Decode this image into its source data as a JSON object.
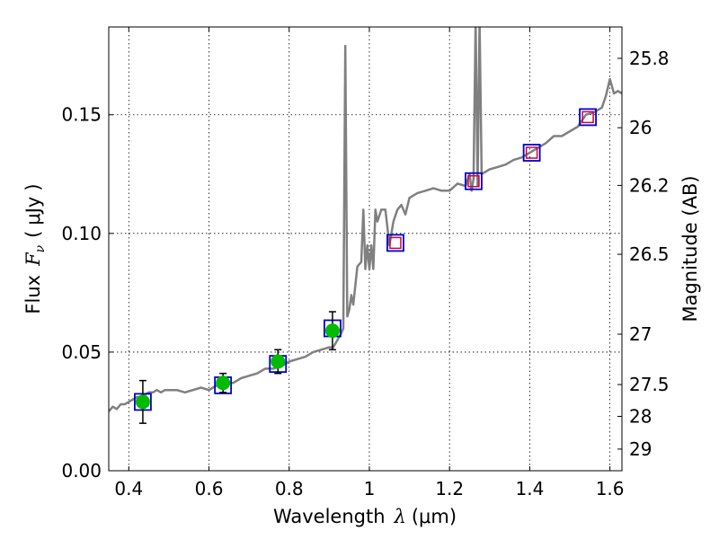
{
  "chart_data": {
    "type": "line",
    "xlabel_prefix": "Wavelength",
    "xlabel_symbol": "λ",
    "xlabel_unit": "(μm)",
    "ylabel_prefix": "Flux",
    "ylabel_symbol": "F",
    "ylabel_subscript": "ν",
    "ylabel_unit_open": "(",
    "ylabel_unit": "μJy",
    "ylabel_unit_close": ")",
    "y2label": "Magnitude (AB)",
    "xlim": [
      0.35,
      1.63
    ],
    "ylim": [
      0.0,
      0.187
    ],
    "xticks": [
      {
        "value": 0.4,
        "label": "0.4"
      },
      {
        "value": 0.6,
        "label": "0.6"
      },
      {
        "value": 0.8,
        "label": "0.8"
      },
      {
        "value": 1.0,
        "label": "1"
      },
      {
        "value": 1.2,
        "label": "1.2"
      },
      {
        "value": 1.4,
        "label": "1.4"
      },
      {
        "value": 1.6,
        "label": "1.6"
      }
    ],
    "yticks": [
      {
        "value": 0.0,
        "label": "0.00"
      },
      {
        "value": 0.05,
        "label": "0.05"
      },
      {
        "value": 0.1,
        "label": "0.10"
      },
      {
        "value": 0.15,
        "label": "0.15"
      }
    ],
    "y2ticks": [
      {
        "value": 25.8,
        "label": "25.8"
      },
      {
        "value": 26.0,
        "label": "26"
      },
      {
        "value": 26.2,
        "label": "26.2"
      },
      {
        "value": 26.5,
        "label": "26.5"
      },
      {
        "value": 27.0,
        "label": "27"
      },
      {
        "value": 27.5,
        "label": "27.5"
      },
      {
        "value": 28.0,
        "label": "28"
      },
      {
        "value": 29.0,
        "label": "29"
      }
    ],
    "grid": true,
    "colors": {
      "model": "#808080",
      "observed": "#00bb00",
      "errorbar": "#000000",
      "model_box": "#0000cc",
      "upper_limit": "#cc0044"
    },
    "series": [
      {
        "style": "line",
        "x": [
          0.35,
          0.36,
          0.37,
          0.38,
          0.39,
          0.4,
          0.41,
          0.42,
          0.43,
          0.44,
          0.45,
          0.46,
          0.47,
          0.48,
          0.49,
          0.5,
          0.52,
          0.54,
          0.56,
          0.58,
          0.6,
          0.62,
          0.64,
          0.66,
          0.68,
          0.7,
          0.72,
          0.74,
          0.76,
          0.78,
          0.8,
          0.82,
          0.84,
          0.86,
          0.88,
          0.9,
          0.91,
          0.92,
          0.93,
          0.935,
          0.94,
          0.945,
          0.95,
          0.955,
          0.96,
          0.97,
          0.98,
          0.985,
          0.99,
          0.995,
          1.0,
          1.005,
          1.01,
          1.015,
          1.02,
          1.03,
          1.04,
          1.05,
          1.06,
          1.07,
          1.08,
          1.09,
          1.1,
          1.12,
          1.14,
          1.16,
          1.18,
          1.2,
          1.22,
          1.24,
          1.25,
          1.255,
          1.26,
          1.265,
          1.27,
          1.275,
          1.28,
          1.3,
          1.32,
          1.34,
          1.36,
          1.38,
          1.4,
          1.42,
          1.44,
          1.46,
          1.48,
          1.5,
          1.52,
          1.54,
          1.56,
          1.58,
          1.59,
          1.6,
          1.61,
          1.62,
          1.63
        ],
        "y": [
          0.025,
          0.027,
          0.026,
          0.028,
          0.028,
          0.029,
          0.03,
          0.031,
          0.031,
          0.032,
          0.033,
          0.033,
          0.034,
          0.033,
          0.034,
          0.034,
          0.034,
          0.033,
          0.034,
          0.035,
          0.034,
          0.036,
          0.037,
          0.037,
          0.039,
          0.04,
          0.041,
          0.043,
          0.043,
          0.044,
          0.046,
          0.047,
          0.048,
          0.05,
          0.051,
          0.052,
          0.052,
          0.055,
          0.058,
          0.06,
          0.179,
          0.065,
          0.068,
          0.074,
          0.07,
          0.086,
          0.088,
          0.11,
          0.085,
          0.095,
          0.085,
          0.095,
          0.085,
          0.11,
          0.105,
          0.11,
          0.11,
          0.095,
          0.105,
          0.11,
          0.112,
          0.108,
          0.115,
          0.117,
          0.118,
          0.119,
          0.118,
          0.118,
          0.121,
          0.12,
          0.125,
          0.118,
          0.123,
          0.19,
          0.12,
          0.19,
          0.125,
          0.127,
          0.128,
          0.129,
          0.131,
          0.132,
          0.134,
          0.136,
          0.138,
          0.141,
          0.141,
          0.143,
          0.145,
          0.15,
          0.151,
          0.153,
          0.158,
          0.165,
          0.159,
          0.16,
          0.159
        ]
      },
      {
        "style": "model-photometry",
        "x": [
          0.435,
          0.635,
          0.772,
          0.908,
          1.065,
          1.26,
          1.405,
          1.545
        ],
        "y": [
          0.029,
          0.036,
          0.045,
          0.06,
          0.096,
          0.122,
          0.134,
          0.149
        ]
      },
      {
        "style": "observed-detections",
        "x": [
          0.435,
          0.635,
          0.772,
          0.908
        ],
        "y": [
          0.029,
          0.037,
          0.046,
          0.059
        ],
        "yerr": [
          0.009,
          0.004,
          0.005,
          0.008
        ]
      },
      {
        "style": "upper-limits",
        "x": [
          1.065,
          1.26,
          1.405,
          1.545
        ],
        "y": [
          0.096,
          0.122,
          0.134,
          0.149
        ]
      }
    ]
  }
}
